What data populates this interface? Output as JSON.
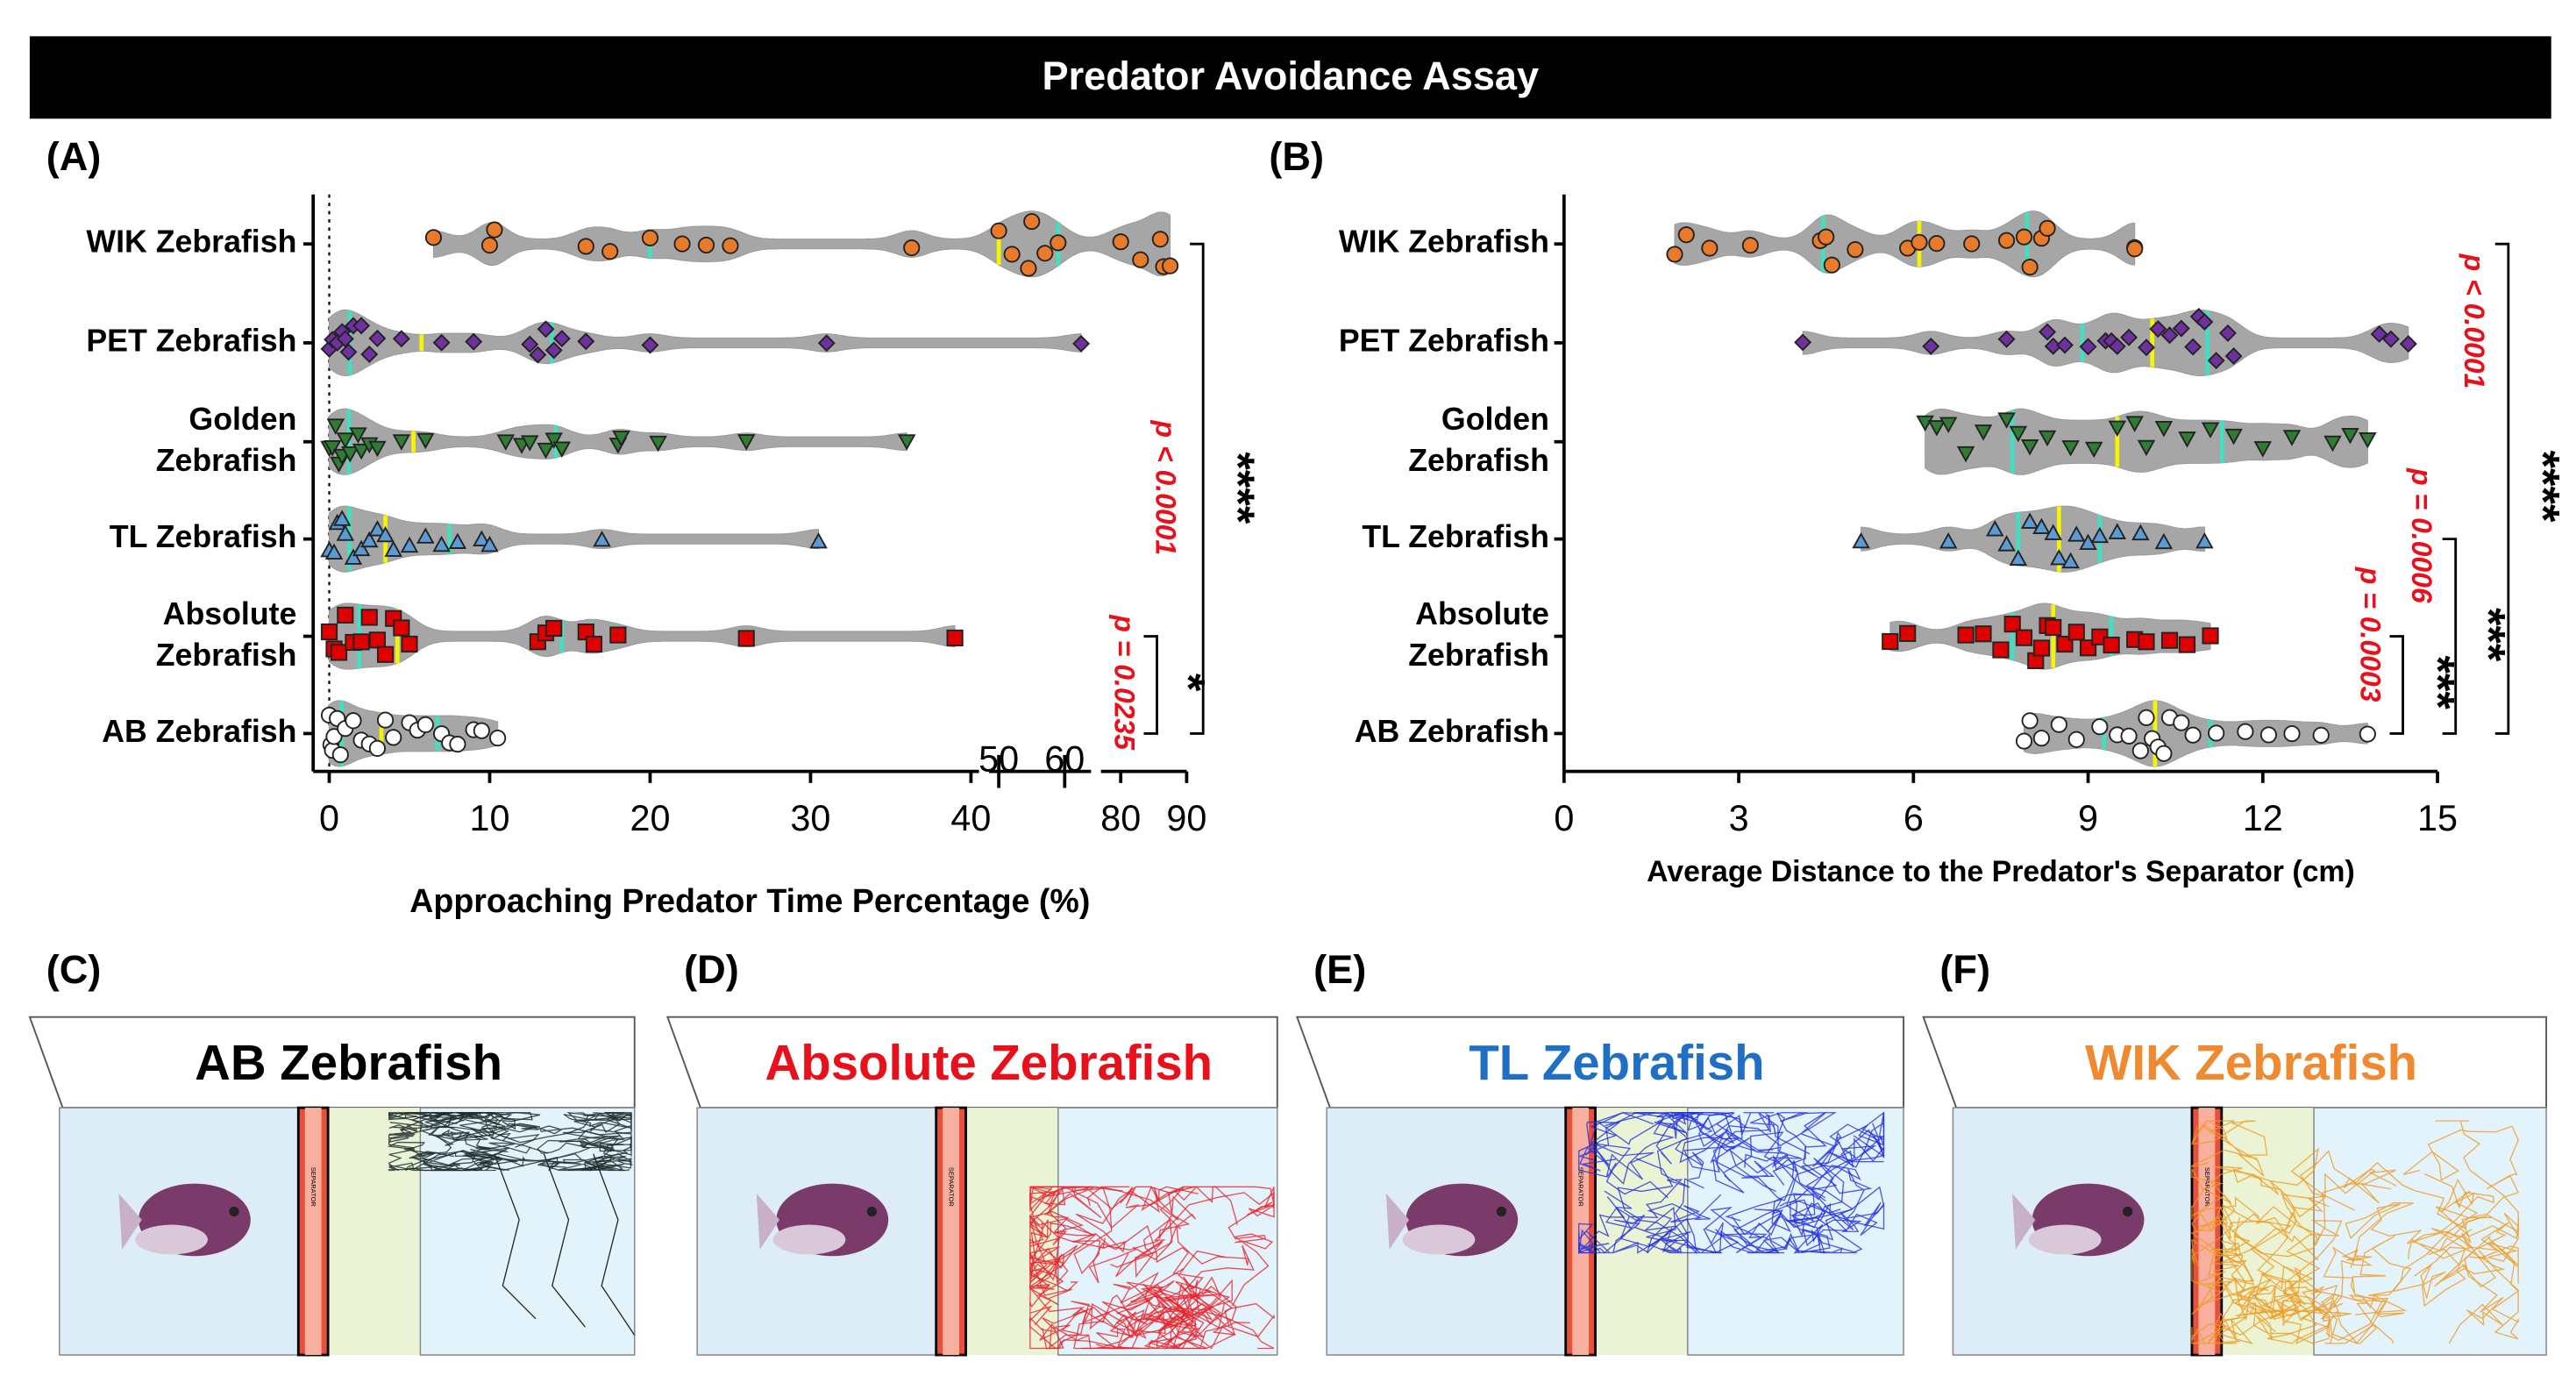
{
  "figure_title": "Predator Avoidance Assay",
  "chart_data": [
    {
      "type": "violin",
      "panel": "(A)",
      "x_label": "Approaching Predator Time Percentage (%)",
      "x_segments": [
        [
          -1,
          40.5
        ],
        [
          48.5,
          64
        ],
        [
          77,
          90
        ]
      ],
      "xticks": [
        0,
        10,
        20,
        30,
        40,
        50,
        60,
        80,
        90
      ],
      "groups": [
        {
          "category": "WIK Zebrafish",
          "color": "#e87a2a",
          "marker": "circle",
          "values": [
            6.5,
            10.3,
            10,
            16,
            17.5,
            20,
            22,
            23.5,
            25,
            36.3,
            50,
            52,
            54.5,
            55,
            57,
            59,
            80,
            83,
            86,
            86.5,
            87.5
          ]
        },
        {
          "category": "PET Zebrafish",
          "color": "#7030a0",
          "marker": "diamond",
          "values": [
            0,
            0.2,
            0.5,
            0.8,
            1,
            1.2,
            1.5,
            2,
            2.5,
            3,
            4.5,
            7,
            9,
            12.5,
            13,
            13.5,
            14,
            14.5,
            16,
            20,
            31,
            62.5
          ]
        },
        {
          "category": "Golden Zebrafish",
          "color": "#2e7d32",
          "marker": "triangle-down",
          "values": [
            0,
            0.2,
            0.4,
            0.6,
            0.8,
            1,
            1.3,
            1.8,
            2,
            2.5,
            3,
            4.5,
            6,
            11,
            12,
            12.5,
            13.5,
            14,
            14.5,
            18,
            18.2,
            20.5,
            26,
            36
          ]
        },
        {
          "category": "TL Zebrafish",
          "color": "#5b9bd5",
          "marker": "triangle-up",
          "values": [
            0,
            0.3,
            0.5,
            0.8,
            1,
            1.5,
            2,
            2.5,
            3,
            3.5,
            4,
            5,
            6,
            7,
            8,
            9.5,
            10,
            17,
            30.5
          ]
        },
        {
          "category": "Absolute Zebrafish",
          "color": "#e00000",
          "marker": "square",
          "values": [
            0,
            0.3,
            0.6,
            1,
            1.5,
            2,
            2.5,
            3,
            3.5,
            4,
            4.5,
            5,
            13,
            13.5,
            14,
            16,
            16.5,
            18,
            26,
            39
          ]
        },
        {
          "category": "AB Zebrafish",
          "color": "#ffffff",
          "marker": "circle",
          "values": [
            0,
            0.1,
            0.2,
            0.3,
            0.5,
            0.7,
            1,
            1.5,
            2,
            2.5,
            3,
            3.5,
            4,
            5,
            5.5,
            6,
            7,
            7.5,
            8,
            9,
            9.5,
            10.5
          ]
        }
      ],
      "annotations": [
        {
          "p": "p < 0.0001",
          "stars": "****"
        },
        {
          "p": "p = 0.0235",
          "stars": "*"
        }
      ]
    },
    {
      "type": "violin",
      "panel": "(B)",
      "x_label": "Average Distance to the Predator's Separator (cm)",
      "xlim": [
        0,
        15
      ],
      "xticks": [
        0,
        3,
        6,
        9,
        12,
        15
      ],
      "groups": [
        {
          "category": "WIK Zebrafish",
          "color": "#e87a2a",
          "marker": "circle",
          "values": [
            1.9,
            2.1,
            2.5,
            3.2,
            4.4,
            4.5,
            4.6,
            5.0,
            5.9,
            6.1,
            6.4,
            7.0,
            7.6,
            7.9,
            8.0,
            8.2,
            8.3,
            9.8,
            9.8
          ]
        },
        {
          "category": "PET Zebrafish",
          "color": "#7030a0",
          "marker": "diamond",
          "values": [
            4.1,
            6.3,
            7.6,
            8.3,
            8.4,
            8.6,
            9.0,
            9.3,
            9.4,
            9.5,
            9.7,
            10.0,
            10.2,
            10.4,
            10.6,
            10.8,
            10.9,
            11.0,
            11.2,
            11.4,
            11.5,
            14.0,
            14.2,
            14.5
          ]
        },
        {
          "category": "Golden Zebrafish",
          "color": "#2e7d32",
          "marker": "triangle-down",
          "values": [
            6.2,
            6.4,
            6.6,
            6.9,
            7.2,
            7.6,
            7.8,
            8.0,
            8.3,
            8.7,
            9.1,
            9.5,
            9.8,
            10.0,
            10.3,
            10.7,
            11.1,
            11.5,
            12.0,
            12.5,
            13.2,
            13.5,
            13.8
          ]
        },
        {
          "category": "TL Zebrafish",
          "color": "#5b9bd5",
          "marker": "triangle-up",
          "values": [
            5.1,
            6.6,
            7.4,
            7.6,
            7.8,
            8.0,
            8.2,
            8.4,
            8.5,
            8.7,
            8.8,
            9.0,
            9.2,
            9.5,
            9.9,
            10.3,
            11.0
          ]
        },
        {
          "category": "Absolute Zebrafish",
          "color": "#e00000",
          "marker": "square",
          "values": [
            5.6,
            5.9,
            6.9,
            7.2,
            7.5,
            7.7,
            7.9,
            8.1,
            8.2,
            8.3,
            8.4,
            8.6,
            8.8,
            9.0,
            9.2,
            9.4,
            9.8,
            10.0,
            10.4,
            10.7,
            11.1
          ]
        },
        {
          "category": "AB Zebrafish",
          "color": "#ffffff",
          "marker": "circle",
          "values": [
            7.9,
            8.0,
            8.2,
            8.5,
            8.8,
            9.2,
            9.5,
            9.7,
            9.9,
            10.0,
            10.1,
            10.2,
            10.3,
            10.4,
            10.6,
            10.8,
            11.2,
            11.7,
            12.1,
            12.5,
            13.0,
            13.8
          ]
        }
      ],
      "annotations": [
        {
          "p": "p < 0.0001",
          "stars": "****"
        },
        {
          "p": "p = 0.0006",
          "stars": "***"
        },
        {
          "p": "p = 0.0003",
          "stars": "***"
        }
      ]
    }
  ],
  "tracking_panels": [
    {
      "label": "(C)",
      "title": "AB Zebrafish",
      "color": "#000000",
      "trace_color": "#1a2a2a",
      "separator": "SEPARATOR"
    },
    {
      "label": "(D)",
      "title": "Absolute Zebrafish",
      "color": "#e8101a",
      "trace_color": "#e8202a",
      "separator": "SEPARATOR"
    },
    {
      "label": "(E)",
      "title": "TL Zebrafish",
      "color": "#1f6fc4",
      "trace_color": "#2030e0",
      "separator": "SEPARATOR"
    },
    {
      "label": "(F)",
      "title": "WIK Zebrafish",
      "color": "#f08a30",
      "trace_color": "#f09a20",
      "separator": "SEPARATOR"
    }
  ]
}
